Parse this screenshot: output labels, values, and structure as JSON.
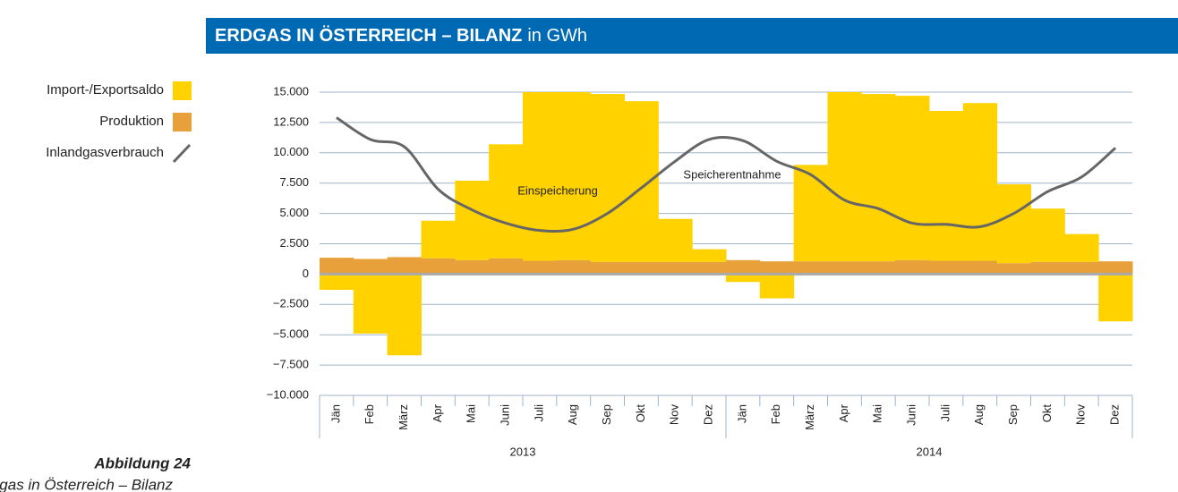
{
  "chart_data": {
    "type": "bar",
    "title": "ERDGAS IN ÖSTERREICH – BILANZ",
    "title_unit": "in GWh",
    "figure_label": "Abbildung 24",
    "figure_caption": "Erdgas in Österreich – Bilanz",
    "categories": [
      "Jän",
      "Feb",
      "März",
      "Apr",
      "Mai",
      "Juni",
      "Juli",
      "Aug",
      "Sep",
      "Okt",
      "Nov",
      "Dez",
      "Jän",
      "Feb",
      "März",
      "Apr",
      "Mai",
      "Juni",
      "Juli",
      "Aug",
      "Sep",
      "Okt",
      "Nov",
      "Dez"
    ],
    "groups": [
      "2013",
      "2014"
    ],
    "series": [
      {
        "name": "Import-/Exportsaldo",
        "type": "bar",
        "color": "#ffd200",
        "values": [
          -1300,
          -4900,
          -6700,
          3100,
          6550,
          9400,
          13900,
          13850,
          13850,
          13250,
          3550,
          1050,
          -650,
          -2000,
          7950,
          13950,
          13800,
          13550,
          12350,
          13000,
          6500,
          4400,
          2300,
          -3900
        ]
      },
      {
        "name": "Produktion",
        "type": "bar",
        "color": "#e8a03a",
        "values": [
          1350,
          1250,
          1400,
          1300,
          1150,
          1300,
          1100,
          1150,
          1000,
          1000,
          1000,
          1000,
          1150,
          1050,
          1050,
          1050,
          1050,
          1150,
          1100,
          1100,
          900,
          1000,
          1000,
          1050
        ]
      },
      {
        "name": "Inlandgasverbrauch",
        "type": "line",
        "color": "#666666",
        "values": [
          12900,
          11100,
          10500,
          7000,
          5300,
          4200,
          3600,
          3700,
          5000,
          7100,
          9300,
          11100,
          11000,
          9300,
          8200,
          6100,
          5400,
          4200,
          4100,
          3900,
          5000,
          6800,
          8000,
          10400
        ]
      }
    ],
    "annotations": [
      "Einspeicherung",
      "Speicherentnahme"
    ],
    "ylim": [
      -10000,
      15000
    ],
    "yticks": [
      {
        "value": -10000,
        "label": "−10.000"
      },
      {
        "value": -7500,
        "label": "−7.500"
      },
      {
        "value": -5000,
        "label": "−5.000"
      },
      {
        "value": -2500,
        "label": "−2.500"
      },
      0,
      {
        "value": 2500,
        "label": "2.500"
      },
      {
        "value": 5000,
        "label": "5.000"
      },
      {
        "value": 7500,
        "label": "7.500"
      },
      {
        "value": 10000,
        "label": "10.000"
      },
      {
        "value": 12500,
        "label": "12.500"
      },
      {
        "value": 15000,
        "label": "15.000"
      }
    ],
    "grid": true
  }
}
